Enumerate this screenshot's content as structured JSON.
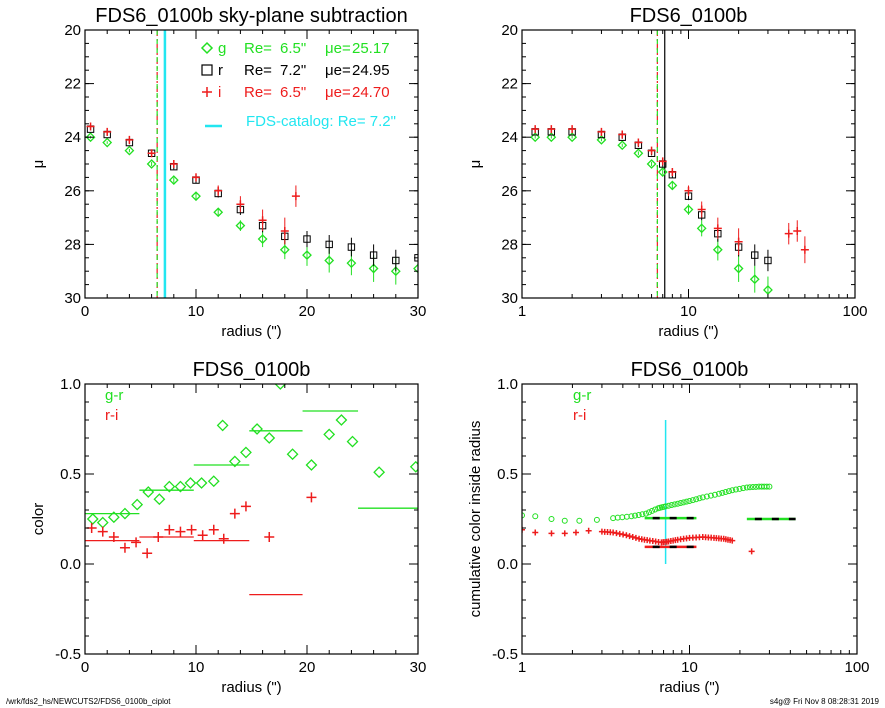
{
  "colors": {
    "g": "#22e022",
    "r": "#000000",
    "i": "#ee1c1c",
    "catalog": "#22e6f0"
  },
  "footer": {
    "path": "/wrk/fds2_hs/NEWCUTS2/FDS6_0100b_ciplot",
    "stamp": "s4g@  Fri Nov  8 08:28:31 2019"
  },
  "chart_data": [
    {
      "type": "scatter",
      "title": "FDS6_0100b sky-plane subtraction",
      "xlabel": "radius (\")",
      "ylabel": "μ",
      "xlim": [
        0,
        30
      ],
      "ylim": [
        30,
        20
      ],
      "xscale": "linear",
      "xticks": [
        "0",
        "10",
        "20",
        "30"
      ],
      "yticks": [
        "20",
        "22",
        "24",
        "26",
        "28",
        "30"
      ],
      "legend": {
        "placement": "top-right",
        "entries": [
          {
            "band": "g",
            "re_label": "Re=",
            "re": "6.5\"",
            "mu_label": "μe=",
            "mu": "25.17"
          },
          {
            "band": "r",
            "re_label": "Re=",
            "re": "7.2\"",
            "mu_label": "μe=",
            "mu": "24.95"
          },
          {
            "band": "i",
            "re_label": "Re=",
            "re": "6.5\"",
            "mu_label": "μe=",
            "mu": "24.70"
          }
        ],
        "catalog": "FDS-catalog: Re=   7.2\""
      },
      "vlines": [
        {
          "band": "i",
          "x": 6.5
        },
        {
          "band": "g",
          "x": 6.5
        },
        {
          "band": "r",
          "x": 7.2
        },
        {
          "band": "catalog",
          "x": 7.2
        }
      ],
      "series": [
        {
          "name": "g",
          "points": [
            [
              0.5,
              24.0,
              0.05
            ],
            [
              2,
              24.2,
              0.05
            ],
            [
              4,
              24.5,
              0.06
            ],
            [
              6,
              25.0,
              0.08
            ],
            [
              8,
              25.6,
              0.1
            ],
            [
              10,
              26.2,
              0.12
            ],
            [
              12,
              26.8,
              0.15
            ],
            [
              14,
              27.3,
              0.2
            ],
            [
              16,
              27.8,
              0.3
            ],
            [
              18,
              28.2,
              0.35
            ],
            [
              20,
              28.4,
              0.4
            ],
            [
              22,
              28.6,
              0.45
            ],
            [
              24,
              28.7,
              0.45
            ],
            [
              26,
              28.9,
              0.5
            ],
            [
              28,
              29.0,
              0.5
            ],
            [
              30,
              28.9,
              0.5
            ]
          ]
        },
        {
          "name": "r",
          "points": [
            [
              0.5,
              23.7,
              0.05
            ],
            [
              2,
              23.9,
              0.05
            ],
            [
              4,
              24.2,
              0.06
            ],
            [
              6,
              24.6,
              0.08
            ],
            [
              8,
              25.1,
              0.1
            ],
            [
              10,
              25.6,
              0.12
            ],
            [
              12,
              26.1,
              0.15
            ],
            [
              14,
              26.7,
              0.2
            ],
            [
              16,
              27.3,
              0.25
            ],
            [
              18,
              27.7,
              0.3
            ],
            [
              20,
              27.8,
              0.3
            ],
            [
              22,
              28.0,
              0.35
            ],
            [
              24,
              28.1,
              0.35
            ],
            [
              26,
              28.4,
              0.4
            ],
            [
              28,
              28.6,
              0.4
            ],
            [
              30,
              28.5,
              0.4
            ]
          ]
        },
        {
          "name": "i",
          "points": [
            [
              0.5,
              23.6,
              0.05
            ],
            [
              2,
              23.8,
              0.05
            ],
            [
              4,
              24.1,
              0.06
            ],
            [
              6,
              24.6,
              0.08
            ],
            [
              8,
              25.0,
              0.1
            ],
            [
              10,
              25.5,
              0.15
            ],
            [
              12,
              26.0,
              0.2
            ],
            [
              14,
              26.5,
              0.3
            ],
            [
              16,
              27.1,
              0.4
            ],
            [
              18,
              27.5,
              0.5
            ],
            [
              19,
              26.2,
              0.4
            ]
          ]
        }
      ]
    },
    {
      "type": "scatter",
      "title": "FDS6_0100b",
      "xlabel": "radius (\")",
      "ylabel": "μ",
      "xlim": [
        1,
        100
      ],
      "ylim": [
        30,
        20
      ],
      "xscale": "log",
      "xticks": [
        "1",
        "10",
        "100"
      ],
      "yticks": [
        "20",
        "22",
        "24",
        "26",
        "28",
        "30"
      ],
      "vlines": [
        {
          "band": "i",
          "x": 6.5
        },
        {
          "band": "g",
          "x": 6.5
        },
        {
          "band": "r",
          "x": 7.2
        }
      ],
      "series": [
        {
          "name": "g",
          "points": [
            [
              1.2,
              24.0,
              0.05
            ],
            [
              1.5,
              24.0,
              0.05
            ],
            [
              2,
              24.0,
              0.05
            ],
            [
              3,
              24.1,
              0.05
            ],
            [
              4,
              24.3,
              0.06
            ],
            [
              5,
              24.6,
              0.07
            ],
            [
              6,
              25.0,
              0.08
            ],
            [
              7,
              25.3,
              0.1
            ],
            [
              8,
              25.8,
              0.12
            ],
            [
              10,
              26.7,
              0.2
            ],
            [
              12,
              27.4,
              0.3
            ],
            [
              15,
              28.2,
              0.4
            ],
            [
              20,
              28.9,
              0.5
            ],
            [
              25,
              29.3,
              0.5
            ],
            [
              30,
              29.7,
              0.5
            ]
          ]
        },
        {
          "name": "r",
          "points": [
            [
              1.2,
              23.8,
              0.05
            ],
            [
              1.5,
              23.8,
              0.05
            ],
            [
              2,
              23.8,
              0.05
            ],
            [
              3,
              23.9,
              0.05
            ],
            [
              4,
              24.0,
              0.06
            ],
            [
              5,
              24.3,
              0.07
            ],
            [
              6,
              24.6,
              0.08
            ],
            [
              7,
              25.0,
              0.1
            ],
            [
              8,
              25.4,
              0.12
            ],
            [
              10,
              26.2,
              0.15
            ],
            [
              12,
              26.9,
              0.2
            ],
            [
              15,
              27.6,
              0.3
            ],
            [
              20,
              28.1,
              0.35
            ],
            [
              25,
              28.4,
              0.4
            ],
            [
              30,
              28.6,
              0.4
            ]
          ]
        },
        {
          "name": "i",
          "points": [
            [
              1.2,
              23.7,
              0.05
            ],
            [
              1.5,
              23.7,
              0.05
            ],
            [
              2,
              23.7,
              0.05
            ],
            [
              3,
              23.8,
              0.05
            ],
            [
              4,
              23.9,
              0.06
            ],
            [
              5,
              24.2,
              0.07
            ],
            [
              6,
              24.5,
              0.08
            ],
            [
              7,
              24.9,
              0.1
            ],
            [
              8,
              25.3,
              0.12
            ],
            [
              10,
              26.0,
              0.2
            ],
            [
              12,
              26.7,
              0.3
            ],
            [
              15,
              27.4,
              0.4
            ],
            [
              20,
              27.9,
              0.5
            ],
            [
              40,
              27.6,
              0.4
            ],
            [
              45,
              27.5,
              0.4
            ],
            [
              50,
              28.2,
              0.5
            ]
          ]
        }
      ]
    },
    {
      "type": "scatter",
      "title": "FDS6_0100b",
      "xlabel": "radius (\")",
      "ylabel": "color",
      "xlim": [
        0,
        30
      ],
      "ylim": [
        -0.5,
        1.0
      ],
      "xscale": "linear",
      "xticks": [
        "0",
        "10",
        "20",
        "30"
      ],
      "yticks": [
        "-0.5",
        "0.0",
        "0.5",
        "1.0"
      ],
      "legend": {
        "placement": "top-left",
        "entries": [
          "g-r",
          "r-i"
        ]
      },
      "series": [
        {
          "name": "g-r",
          "points": [
            [
              0.7,
              0.25
            ],
            [
              1.6,
              0.23
            ],
            [
              2.6,
              0.26
            ],
            [
              3.6,
              0.28
            ],
            [
              4.7,
              0.33
            ],
            [
              5.7,
              0.4
            ],
            [
              6.7,
              0.36
            ],
            [
              7.6,
              0.43
            ],
            [
              8.6,
              0.43
            ],
            [
              9.5,
              0.45
            ],
            [
              10.5,
              0.45
            ],
            [
              11.6,
              0.46
            ],
            [
              12.4,
              0.77
            ],
            [
              13.5,
              0.57
            ],
            [
              14.5,
              0.62
            ],
            [
              15.5,
              0.75
            ],
            [
              16.6,
              0.7
            ],
            [
              17.6,
              1.0
            ],
            [
              18.7,
              0.61
            ],
            [
              20.4,
              0.55
            ],
            [
              22.0,
              0.72
            ],
            [
              23.1,
              0.8
            ],
            [
              24.1,
              0.68
            ],
            [
              26.5,
              0.51
            ],
            [
              29.8,
              0.54
            ]
          ],
          "bins": [
            [
              0,
              4.9,
              0.28
            ],
            [
              4.9,
              9.8,
              0.41
            ],
            [
              9.8,
              14.8,
              0.55
            ],
            [
              14.8,
              19.6,
              0.74
            ],
            [
              19.6,
              24.6,
              0.85
            ],
            [
              24.6,
              30,
              0.31
            ]
          ]
        },
        {
          "name": "r-i",
          "points": [
            [
              0.6,
              0.2
            ],
            [
              1.6,
              0.18
            ],
            [
              2.6,
              0.15
            ],
            [
              3.6,
              0.09
            ],
            [
              4.6,
              0.12
            ],
            [
              5.6,
              0.06
            ],
            [
              6.6,
              0.15
            ],
            [
              7.6,
              0.19
            ],
            [
              8.6,
              0.18
            ],
            [
              9.6,
              0.19
            ],
            [
              10.6,
              0.16
            ],
            [
              11.6,
              0.19
            ],
            [
              12.5,
              0.14
            ],
            [
              13.5,
              0.28
            ],
            [
              14.5,
              0.32
            ],
            [
              16.6,
              0.15
            ],
            [
              20.4,
              0.37
            ]
          ],
          "bins": [
            [
              0,
              4.9,
              0.13
            ],
            [
              4.9,
              9.8,
              0.15
            ],
            [
              9.8,
              14.8,
              0.13
            ],
            [
              14.8,
              19.6,
              -0.17
            ]
          ]
        }
      ]
    },
    {
      "type": "scatter",
      "title": "FDS6_0100b",
      "xlabel": "radius (\")",
      "ylabel": "cumulative color inside radius",
      "xlim": [
        1,
        100
      ],
      "ylim": [
        -0.5,
        1.0
      ],
      "xscale": "log",
      "xticks": [
        "1",
        "10",
        "100"
      ],
      "yticks": [
        "-0.5",
        "0.0",
        "0.5",
        "1.0"
      ],
      "legend": {
        "placement": "top-left",
        "entries": [
          "g-r",
          "r-i"
        ]
      },
      "vline": {
        "x": 7.2,
        "y0": 0.0,
        "y1": 0.8
      },
      "series": [
        {
          "name": "g-r",
          "curve": [
            [
              1.0,
              0.27
            ],
            [
              1.2,
              0.265
            ],
            [
              1.5,
              0.25
            ],
            [
              1.8,
              0.24
            ],
            [
              2.2,
              0.24
            ],
            [
              2.8,
              0.245
            ],
            [
              3.5,
              0.255
            ],
            [
              4.5,
              0.265
            ],
            [
              5.5,
              0.28
            ],
            [
              6.5,
              0.31
            ],
            [
              7.2,
              0.32
            ],
            [
              8.5,
              0.335
            ],
            [
              10,
              0.35
            ],
            [
              12,
              0.37
            ],
            [
              15,
              0.39
            ],
            [
              18,
              0.41
            ],
            [
              22,
              0.425
            ],
            [
              26,
              0.43
            ],
            [
              30,
              0.43
            ]
          ],
          "marker": "circle",
          "segments": [
            [
              5.4,
              11,
              0.255
            ],
            [
              22,
              43,
              0.25
            ]
          ]
        },
        {
          "name": "r-i",
          "curve": [
            [
              1.0,
              0.19
            ],
            [
              1.2,
              0.175
            ],
            [
              1.5,
              0.17
            ],
            [
              1.8,
              0.17
            ],
            [
              2.1,
              0.175
            ],
            [
              2.5,
              0.185
            ],
            [
              3,
              0.18
            ],
            [
              3.5,
              0.175
            ],
            [
              4.2,
              0.16
            ],
            [
              5,
              0.14
            ],
            [
              5.8,
              0.13
            ],
            [
              6.8,
              0.12
            ],
            [
              7.5,
              0.125
            ],
            [
              8.5,
              0.135
            ],
            [
              10,
              0.145
            ],
            [
              12,
              0.15
            ],
            [
              14,
              0.145
            ],
            [
              16,
              0.14
            ],
            [
              18,
              0.13
            ]
          ],
          "extra": [
            [
              23.5,
              0.07
            ]
          ],
          "marker": "plus",
          "segments": [
            [
              5.4,
              11,
              0.095
            ]
          ]
        }
      ]
    }
  ]
}
